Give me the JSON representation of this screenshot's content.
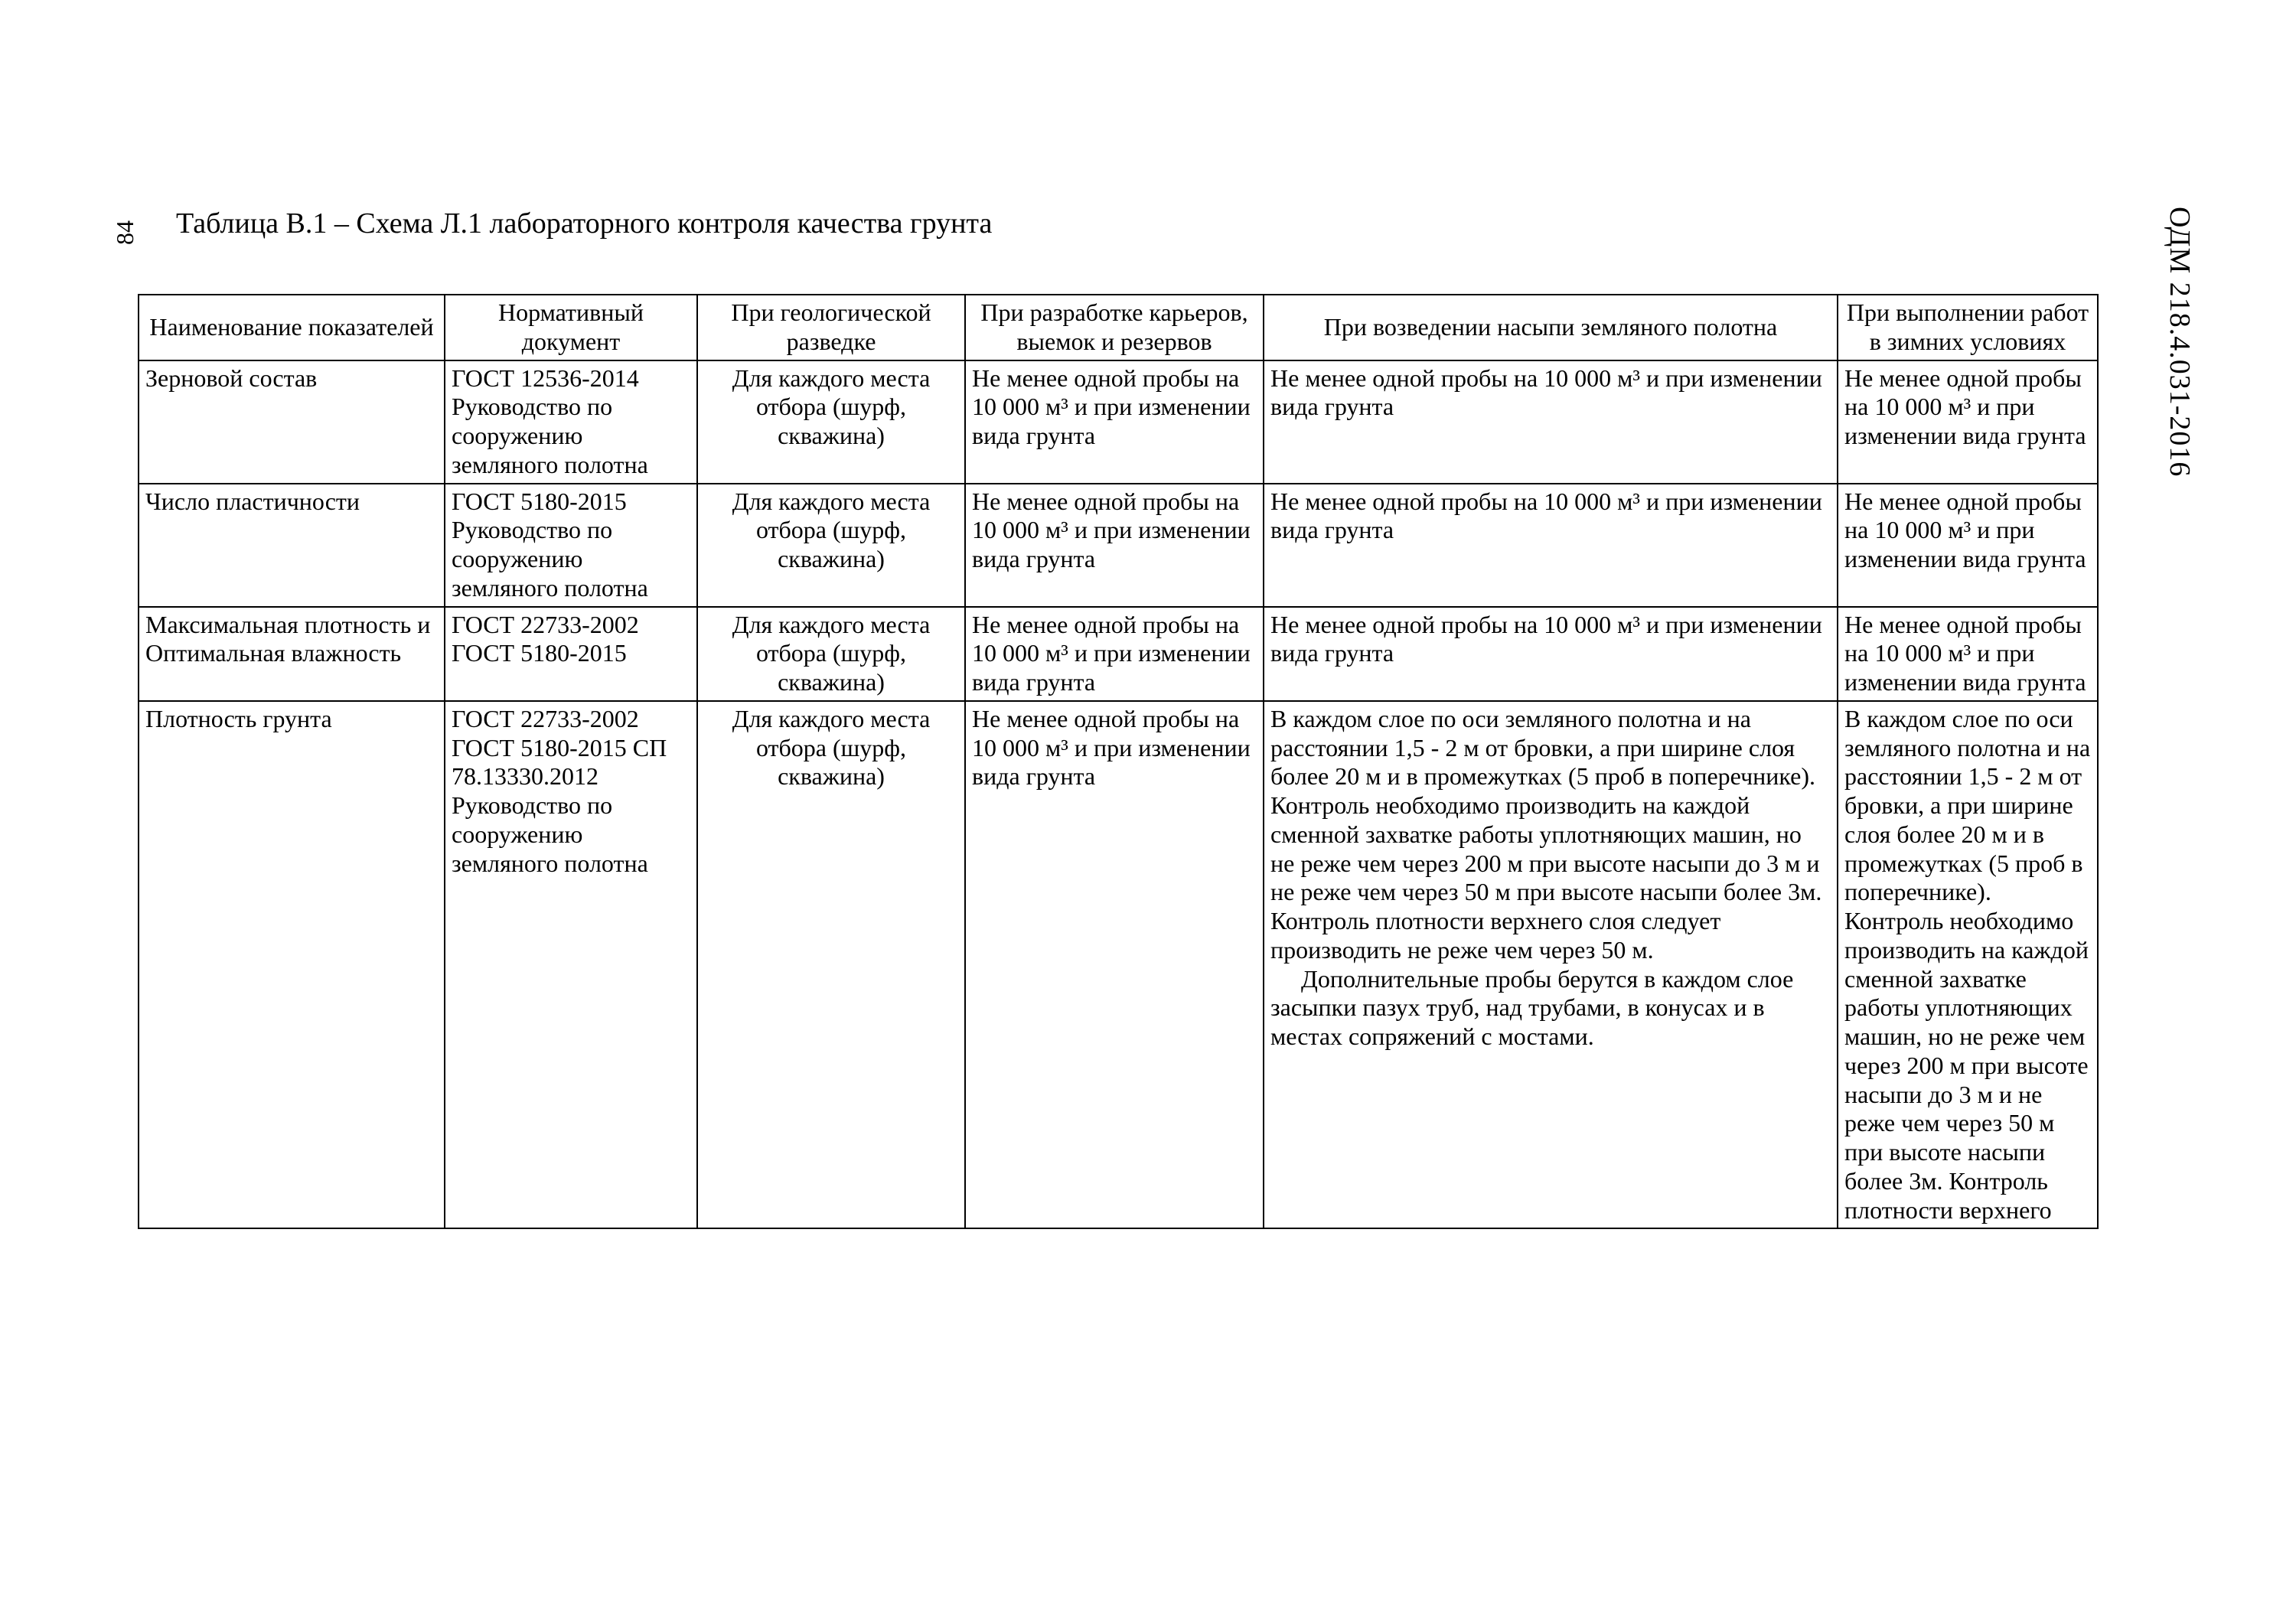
{
  "docId": "ОДМ 218.4.031-2016",
  "pageNumber": "84",
  "title": "Таблица В.1 – Схема Л.1 лабораторного контроля качества грунта",
  "headers": {
    "c1": "Наименование показателей",
    "c2": "Нормативный документ",
    "c3": "При геологической разведке",
    "c4": "При разработке карьеров, выемок и резервов",
    "c5": "При возведении насыпи земляного полотна",
    "c6": "При выполнении работ в зимних условиях"
  },
  "rows": [
    {
      "name": "Зерновой состав",
      "normDoc": "ГОСТ 12536-2014 Руководство по сооружению земляного полотна",
      "geo": "Для каждого места отбора (шурф, скважина)",
      "quarry": "Не менее одной пробы на 10 000 м³ и при изменении вида грунта",
      "embankment": "Не менее одной пробы на 10 000 м³ и при изменении вида грунта",
      "winter": "Не менее одной пробы на 10 000 м³ и при изменении вида грунта"
    },
    {
      "name": "Число пластичности",
      "normDoc": "ГОСТ 5180-2015 Руководство по сооружению земляного полотна",
      "geo": "Для каждого места отбора (шурф, скважина)",
      "quarry": "Не менее одной пробы на 10 000 м³ и при изменении вида грунта",
      "embankment": "Не менее одной пробы на 10 000 м³ и при изменении вида грунта",
      "winter": "Не менее одной пробы на 10 000 м³ и при изменении вида грунта"
    },
    {
      "name": "Максимальная плотность и Оптимальная влажность",
      "normDoc": "ГОСТ 22733-2002 ГОСТ 5180-2015",
      "geo": "Для каждого места отбора (шурф, скважина)",
      "quarry": "Не менее одной пробы на 10 000 м³ и при изменении вида грунта",
      "embankment": "Не менее одной пробы на 10 000 м³ и при изменении вида грунта",
      "winter": "Не менее одной пробы на 10 000 м³ и при изменении вида грунта"
    },
    {
      "name": "Плотность грунта",
      "normDoc": "ГОСТ 22733-2002 ГОСТ 5180-2015 СП 78.13330.2012 Руководство по сооружению земляного полотна",
      "geo": "Для каждого места отбора (шурф, скважина)",
      "quarry": "Не менее одной пробы на 10 000 м³ и при изменении вида грунта",
      "embankment_p1": "В каждом слое по оси земляного полотна и на расстоянии 1,5 - 2 м от бровки, а при ширине слоя более 20 м и в промежутках (5 проб в поперечнике). Контроль необходимо производить на каждой сменной захватке работы уплотняющих машин, но не реже чем через 200 м при высоте насыпи до 3 м и не реже чем через 50 м  при высоте насыпи более 3м. Контроль плотности верхнего слоя следует производить не реже чем через 50 м.",
      "embankment_p2": "Дополнительные пробы берутся в каждом слое засыпки пазух труб, над трубами, в конусах и в местах сопряжений с мостами.",
      "winter": "В каждом слое по оси земляного полотна и на расстоянии 1,5 - 2 м от бровки, а при ширине слоя более 20 м и в промежутках (5 проб в поперечнике). Контроль необходимо производить на каждой сменной захватке работы уплотняющих машин, но не реже чем через 200 м при высоте насыпи до 3 м и не реже чем через 50 м  при высоте насыпи более 3м. Контроль плотности верхнего"
    }
  ]
}
